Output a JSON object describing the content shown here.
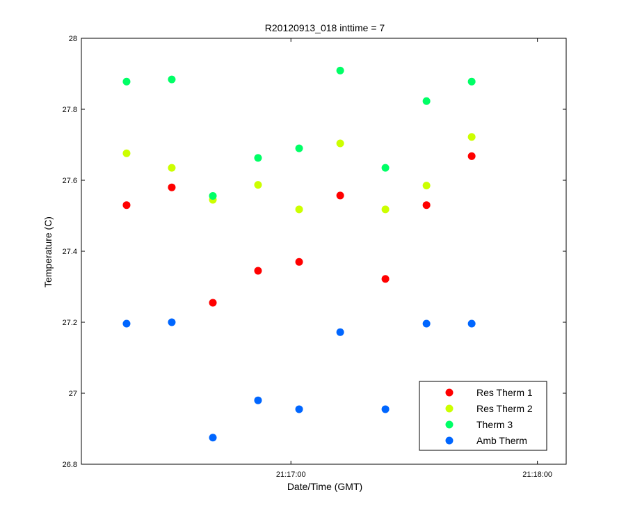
{
  "chart_data": {
    "type": "scatter",
    "title": "R20120913_018 inttime = 7",
    "xlabel": "Date/Time (GMT)",
    "ylabel": "Temperature (C)",
    "xlim": [
      "21:16:09",
      "21:18:07"
    ],
    "ylim": [
      26.8,
      28
    ],
    "x_ticks": [
      "21:17:00",
      "21:18:00"
    ],
    "y_ticks": [
      "26.8",
      "27",
      "27.2",
      "27.4",
      "27.6",
      "27.8",
      "28"
    ],
    "grid": false,
    "legend_position": "bottom-right",
    "x": [
      "21:16:20",
      "21:16:31",
      "21:16:41",
      "21:16:52",
      "21:17:02",
      "21:17:12",
      "21:17:23",
      "21:17:33",
      "21:17:44"
    ],
    "series": [
      {
        "name": "Res Therm 1",
        "color": "#ff0000",
        "values": [
          27.53,
          27.58,
          27.255,
          27.345,
          27.37,
          27.557,
          27.322,
          27.53,
          27.668
        ]
      },
      {
        "name": "Res Therm 2",
        "color": "#ccff00",
        "values": [
          27.676,
          27.635,
          27.545,
          27.587,
          27.518,
          27.704,
          27.518,
          27.585,
          27.722
        ]
      },
      {
        "name": "Therm 3",
        "color": "#00ff66",
        "values": [
          27.878,
          27.884,
          27.556,
          27.663,
          27.69,
          27.909,
          27.635,
          27.823,
          27.878
        ]
      },
      {
        "name": "Amb Therm",
        "color": "#0066ff",
        "values": [
          27.196,
          27.2,
          26.875,
          26.98,
          26.955,
          27.172,
          26.955,
          27.196,
          27.196
        ]
      }
    ]
  }
}
